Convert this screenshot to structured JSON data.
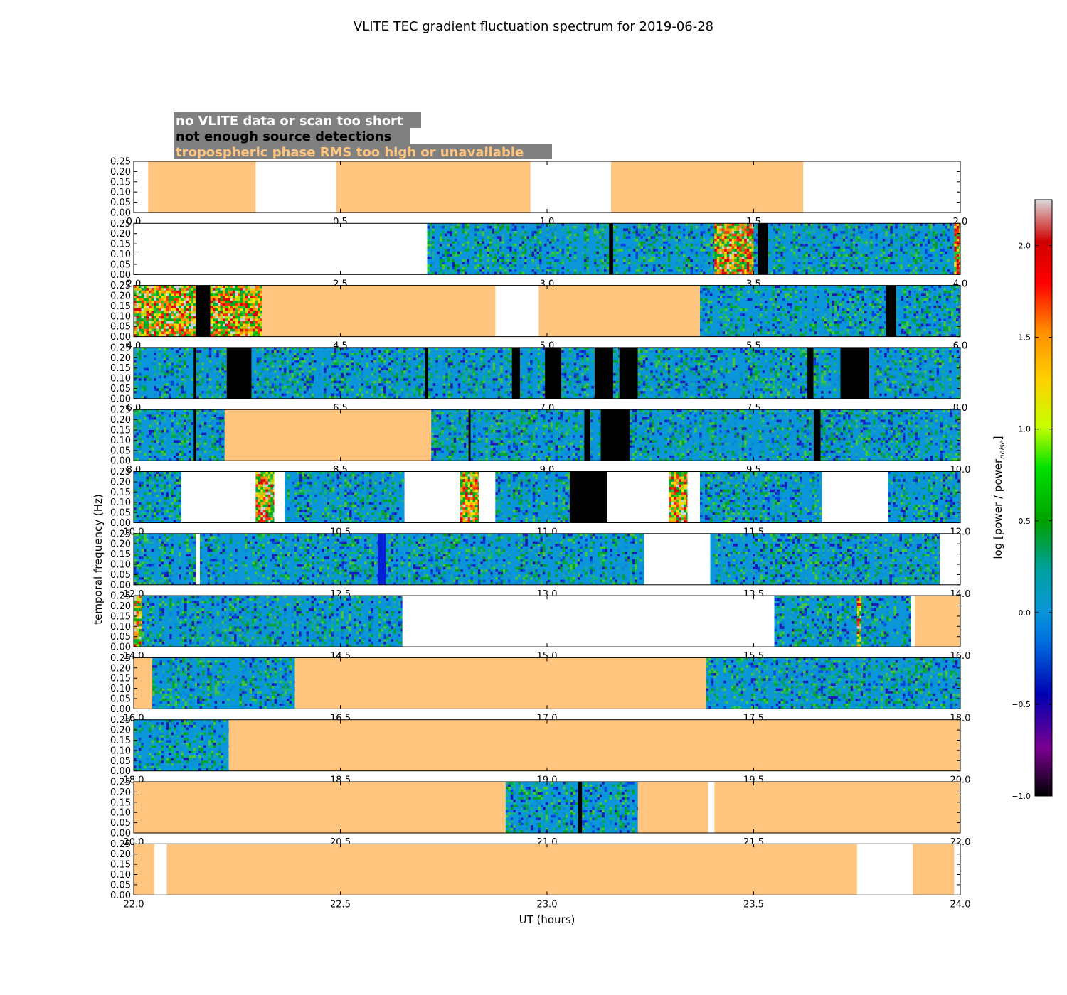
{
  "chart_data": {
    "type": "heatmap",
    "title": "VLITE TEC gradient fluctuation spectrum for 2019-06-28",
    "xlabel": "UT (hours)",
    "ylabel": "temporal frequency (Hz)",
    "ylim": [
      0,
      0.25
    ],
    "y_ticks": [
      "0.00",
      "0.05",
      "0.10",
      "0.15",
      "0.20",
      "0.25"
    ],
    "legend": [
      {
        "label": "no VLITE data or scan too short",
        "color": "#ffffff",
        "box": "#808080"
      },
      {
        "label": "not enough source detections",
        "color": "#000000",
        "box": "#808080"
      },
      {
        "label": "tropospheric phase RMS too high or unavailable",
        "color": "#ffc57f",
        "box": "#808080"
      }
    ],
    "colorbar": {
      "label": "log [power / power",
      "label_sub": "noise",
      "label_end": "]",
      "range": [
        -1.0,
        2.25
      ],
      "ticks": [
        "2.0",
        "1.5",
        "1.0",
        "0.5",
        "0.0",
        "−0.5",
        "−1.0"
      ],
      "tick_values": [
        2.0,
        1.5,
        1.0,
        0.5,
        0.0,
        -0.5,
        -1.0
      ]
    },
    "colors": {
      "trop": "#ffc57f",
      "nodet": "#000000",
      "nodata": "#ffffff",
      "base": "#0a96d8"
    },
    "panels": [
      {
        "range": [
          0,
          2
        ],
        "x_ticks": [
          "0.0",
          "0.5",
          "1.0",
          "1.5",
          "2.0"
        ],
        "segments": [
          [
            0.035,
            0.295,
            "trop"
          ],
          [
            0.49,
            0.96,
            "trop"
          ],
          [
            1.155,
            1.62,
            "trop"
          ]
        ]
      },
      {
        "range": [
          2,
          4
        ],
        "x_ticks": [
          "2.0",
          "2.5",
          "3.0",
          "3.5",
          "4.0"
        ],
        "segments": [
          [
            2.71,
            3.15,
            "data"
          ],
          [
            3.15,
            3.16,
            "nodet"
          ],
          [
            3.16,
            3.405,
            "data"
          ],
          [
            3.405,
            3.5,
            "hot"
          ],
          [
            3.5,
            3.51,
            "data"
          ],
          [
            3.51,
            3.535,
            "nodet"
          ],
          [
            3.535,
            3.985,
            "data"
          ],
          [
            3.985,
            4.0,
            "warm"
          ]
        ]
      },
      {
        "range": [
          4,
          6
        ],
        "x_ticks": [
          "4.0",
          "4.5",
          "5.0",
          "5.5",
          "6.0"
        ],
        "segments": [
          [
            4.0,
            4.15,
            "hot"
          ],
          [
            4.15,
            4.185,
            "nodet"
          ],
          [
            4.185,
            4.31,
            "hot"
          ],
          [
            4.31,
            4.875,
            "trop"
          ],
          [
            4.98,
            5.37,
            "trop"
          ],
          [
            5.37,
            5.82,
            "data"
          ],
          [
            5.82,
            5.845,
            "nodet"
          ],
          [
            5.845,
            6.0,
            "data"
          ]
        ]
      },
      {
        "range": [
          6,
          8
        ],
        "x_ticks": [
          "6.0",
          "6.5",
          "7.0",
          "7.5",
          "8.0"
        ],
        "segments": [
          [
            6.0,
            6.145,
            "data"
          ],
          [
            6.145,
            6.152,
            "nodet"
          ],
          [
            6.152,
            6.225,
            "data"
          ],
          [
            6.225,
            6.285,
            "nodet"
          ],
          [
            6.285,
            6.705,
            "data"
          ],
          [
            6.705,
            6.712,
            "nodet"
          ],
          [
            6.712,
            6.915,
            "data"
          ],
          [
            6.915,
            6.935,
            "nodet"
          ],
          [
            6.935,
            6.995,
            "data"
          ],
          [
            6.995,
            7.035,
            "nodet"
          ],
          [
            7.035,
            7.115,
            "data"
          ],
          [
            7.115,
            7.16,
            "nodet"
          ],
          [
            7.16,
            7.175,
            "data"
          ],
          [
            7.175,
            7.22,
            "nodet"
          ],
          [
            7.22,
            7.63,
            "data"
          ],
          [
            7.63,
            7.645,
            "nodet"
          ],
          [
            7.645,
            7.71,
            "data"
          ],
          [
            7.71,
            7.78,
            "nodet"
          ],
          [
            7.78,
            8.0,
            "data"
          ]
        ]
      },
      {
        "range": [
          8,
          10
        ],
        "x_ticks": [
          "8.0",
          "8.5",
          "9.0",
          "9.5",
          "10.0"
        ],
        "segments": [
          [
            8.0,
            8.145,
            "data"
          ],
          [
            8.145,
            8.152,
            "nodet"
          ],
          [
            8.152,
            8.22,
            "data"
          ],
          [
            8.22,
            8.72,
            "trop"
          ],
          [
            8.72,
            8.81,
            "data"
          ],
          [
            8.81,
            8.815,
            "nodet"
          ],
          [
            8.815,
            9.09,
            "data"
          ],
          [
            9.09,
            9.105,
            "nodet"
          ],
          [
            9.105,
            9.13,
            "data"
          ],
          [
            9.13,
            9.2,
            "nodet"
          ],
          [
            9.2,
            9.645,
            "data"
          ],
          [
            9.645,
            9.662,
            "nodet"
          ],
          [
            9.662,
            10.0,
            "data"
          ]
        ]
      },
      {
        "range": [
          10,
          12
        ],
        "x_ticks": [
          "10.0",
          "10.5",
          "11.0",
          "11.5",
          "12.0"
        ],
        "segments": [
          [
            10.0,
            10.115,
            "data"
          ],
          [
            10.295,
            10.34,
            "hot"
          ],
          [
            10.365,
            10.655,
            "data"
          ],
          [
            10.79,
            10.835,
            "hot"
          ],
          [
            10.875,
            11.055,
            "data"
          ],
          [
            11.055,
            11.145,
            "nodet"
          ],
          [
            11.295,
            11.34,
            "hot"
          ],
          [
            11.37,
            11.665,
            "data"
          ],
          [
            11.825,
            12.0,
            "data"
          ]
        ]
      },
      {
        "range": [
          12,
          14
        ],
        "x_ticks": [
          "12.0",
          "12.5",
          "13.0",
          "13.5",
          "14.0"
        ],
        "segments": [
          [
            12.0,
            12.15,
            "data"
          ],
          [
            12.16,
            12.59,
            "data"
          ],
          [
            12.59,
            12.61,
            "blue"
          ],
          [
            12.61,
            13.235,
            "data"
          ],
          [
            13.395,
            13.95,
            "data"
          ]
        ]
      },
      {
        "range": [
          14,
          16
        ],
        "x_ticks": [
          "14.0",
          "14.5",
          "15.0",
          "15.5",
          "16.0"
        ],
        "segments": [
          [
            14.0,
            14.02,
            "hot"
          ],
          [
            14.02,
            14.65,
            "data"
          ],
          [
            15.55,
            15.88,
            "data"
          ],
          [
            15.75,
            15.76,
            "hot"
          ],
          [
            15.89,
            16.0,
            "trop"
          ]
        ]
      },
      {
        "range": [
          16,
          18
        ],
        "x_ticks": [
          "16.0",
          "16.5",
          "17.0",
          "17.5",
          "18.0"
        ],
        "segments": [
          [
            16.0,
            16.045,
            "trop"
          ],
          [
            16.045,
            16.39,
            "data"
          ],
          [
            16.39,
            17.385,
            "trop"
          ],
          [
            17.385,
            18.0,
            "data"
          ]
        ]
      },
      {
        "range": [
          18,
          20
        ],
        "x_ticks": [
          "18.0",
          "18.5",
          "19.0",
          "19.5",
          "20.0"
        ],
        "segments": [
          [
            18.0,
            18.23,
            "data"
          ],
          [
            18.23,
            20.0,
            "trop"
          ]
        ]
      },
      {
        "range": [
          20,
          22
        ],
        "x_ticks": [
          "20.0",
          "20.5",
          "21.0",
          "21.5",
          "22.0"
        ],
        "segments": [
          [
            20.0,
            20.9,
            "trop"
          ],
          [
            20.9,
            21.075,
            "data"
          ],
          [
            21.075,
            21.085,
            "nodet"
          ],
          [
            21.085,
            21.22,
            "data"
          ],
          [
            21.22,
            21.39,
            "trop"
          ],
          [
            21.405,
            22.0,
            "trop"
          ]
        ]
      },
      {
        "range": [
          22,
          24
        ],
        "x_ticks": [
          "22.0",
          "22.5",
          "23.0",
          "23.5",
          "24.0"
        ],
        "segments": [
          [
            22.0,
            22.05,
            "trop"
          ],
          [
            22.08,
            23.75,
            "trop"
          ],
          [
            23.885,
            23.985,
            "trop"
          ]
        ]
      }
    ]
  }
}
